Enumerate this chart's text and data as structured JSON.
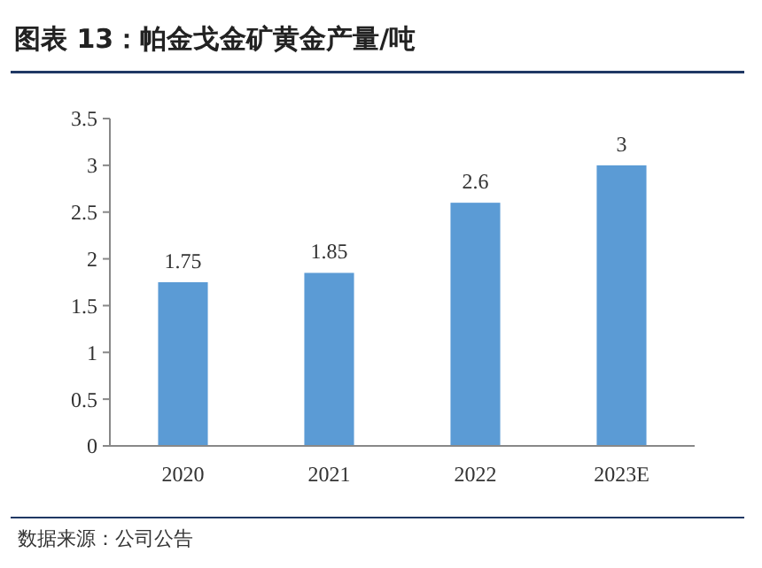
{
  "chart_data": {
    "type": "bar",
    "title": "图表 13：帕金戈金矿黄金产量/吨",
    "categories": [
      "2020",
      "2021",
      "2022",
      "2023E"
    ],
    "values": [
      1.75,
      1.85,
      2.6,
      3
    ],
    "color": "#5b9bd5",
    "ylim": [
      0,
      3.5
    ],
    "yticks": [
      0,
      0.5,
      1,
      1.5,
      2,
      2.5,
      3,
      3.5
    ],
    "data_labels": true,
    "grid": false,
    "annotations": [
      "数据来源：公司公告"
    ]
  }
}
